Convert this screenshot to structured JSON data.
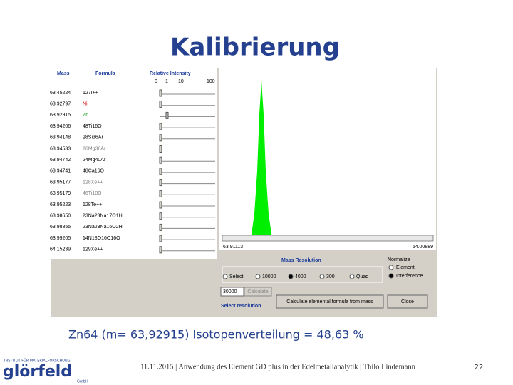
{
  "title": "Kalibrierung",
  "screenshot": {
    "headers": {
      "mass": "Mass",
      "formula": "Formula",
      "intensity": "Relative Intensity"
    },
    "scale": [
      "0",
      "1",
      "10",
      "100"
    ],
    "rows": [
      {
        "mass": "63.45224",
        "formula": "127I++",
        "color": "#000000"
      },
      {
        "mass": "63.92797",
        "formula": "Ni",
        "color": "#d00000"
      },
      {
        "mass": "63.92915",
        "formula": "Zn",
        "color": "#00a000"
      },
      {
        "mass": "63.94206",
        "formula": "48Ti16O",
        "color": "#000000"
      },
      {
        "mass": "63.94148",
        "formula": "28Si36Ar",
        "color": "#000000"
      },
      {
        "mass": "63.94533",
        "formula": "26Mg38Ar",
        "color": "#808080"
      },
      {
        "mass": "63.94742",
        "formula": "24Mg40Ar",
        "color": "#000000"
      },
      {
        "mass": "63.94741",
        "formula": "48Ca16O",
        "color": "#000000"
      },
      {
        "mass": "63.95177",
        "formula": "128Xe++",
        "color": "#808080"
      },
      {
        "mass": "63.95179",
        "formula": "46Ti18O",
        "color": "#808080"
      },
      {
        "mass": "63.95223",
        "formula": "128Te++",
        "color": "#000000"
      },
      {
        "mass": "63.98650",
        "formula": "23Na23Na17O1H",
        "color": "#000000"
      },
      {
        "mass": "63.98855",
        "formula": "23Na23Na16O2H",
        "color": "#000000"
      },
      {
        "mass": "63.99205",
        "formula": "14N18O16O16O",
        "color": "#000000"
      },
      {
        "mass": "64.15239",
        "formula": "129Xe++",
        "color": "#000000"
      }
    ],
    "axis_start": "63.91113",
    "axis_end": "64.00889",
    "resolution_title": "Mass Resolution",
    "resolution_options": [
      "Select",
      "10000",
      "4000",
      "300",
      "Quad"
    ],
    "normalize_title": "Normalize",
    "normalize_options": [
      "Element",
      "Interference"
    ],
    "input": "30000",
    "calculate": "Calculate",
    "formula_button": "Calculate elemental formula from mass",
    "close": "Close",
    "select_resolution": "Select resolution"
  },
  "caption": "Zn64 (m= 63,92915) Isotopenverteilung = 48,63 %",
  "footer": "| 11.11.2015 | Anwendung des Element GD plus in der Edelmetallanalytik | Thilo Lindemann |",
  "page_number": "22",
  "logo": {
    "top": "INSTITUT FÜR MATERIALFORSCHUNG",
    "name": "glörfeld",
    "sub": "GmbH"
  }
}
